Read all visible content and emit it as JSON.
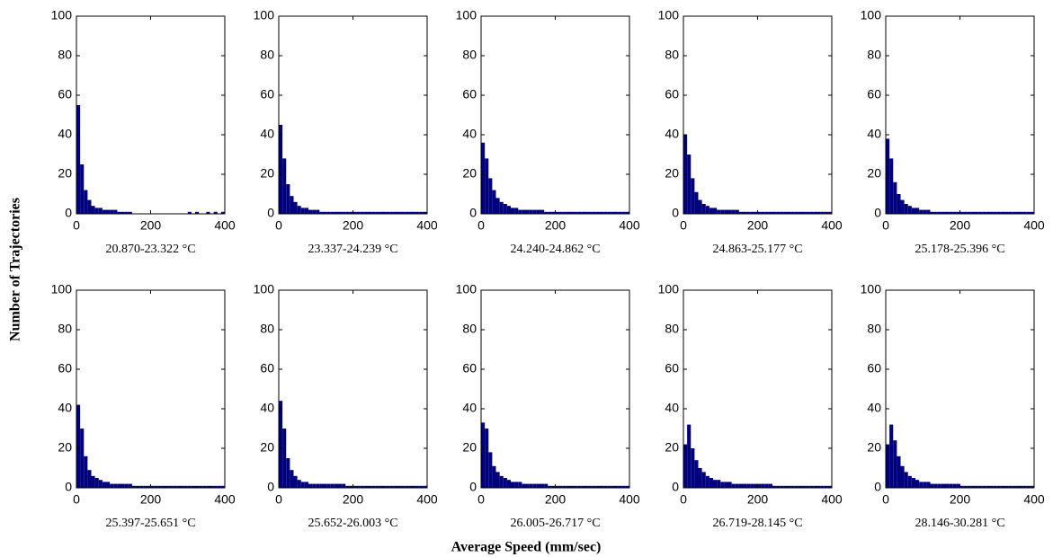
{
  "ylabel": "Number of Trajectories",
  "xlabel": "Average Speed (mm/sec)",
  "chart_data": [
    {
      "type": "histogram",
      "xlabel": "20.870-23.322 °C",
      "color": "#00007f",
      "xlim": [
        0,
        400
      ],
      "ylim": [
        0,
        100
      ],
      "xticks": [
        0,
        200,
        400
      ],
      "yticks": [
        0,
        20,
        40,
        60,
        80,
        100
      ],
      "bins": [
        0,
        10,
        20,
        30,
        40,
        50,
        60,
        70,
        80,
        90,
        100,
        110,
        120,
        130,
        140,
        150,
        160,
        170,
        180,
        190,
        200,
        210,
        220,
        230,
        240,
        250,
        260,
        270,
        280,
        290,
        300,
        310,
        320,
        330,
        340,
        350,
        360,
        370,
        380,
        390,
        400
      ],
      "counts": [
        55,
        25,
        12,
        7,
        4,
        3,
        3,
        2,
        2,
        2,
        2,
        1,
        1,
        1,
        1,
        0,
        0,
        0,
        0,
        0,
        0,
        0,
        0,
        0,
        0,
        0,
        0,
        0,
        0,
        0,
        1,
        0,
        1,
        0,
        0,
        1,
        0,
        1,
        0,
        1
      ]
    },
    {
      "type": "histogram",
      "xlabel": "23.337-24.239 °C",
      "color": "#00007f",
      "xlim": [
        0,
        400
      ],
      "ylim": [
        0,
        100
      ],
      "xticks": [
        0,
        200,
        400
      ],
      "yticks": [
        0,
        20,
        40,
        60,
        80,
        100
      ],
      "bins": [
        0,
        10,
        20,
        30,
        40,
        50,
        60,
        70,
        80,
        90,
        100,
        110,
        120,
        130,
        140,
        150,
        160,
        170,
        180,
        190,
        200,
        210,
        220,
        230,
        240,
        250,
        260,
        270,
        280,
        290,
        300,
        310,
        320,
        330,
        340,
        350,
        360,
        370,
        380,
        390,
        400
      ],
      "counts": [
        45,
        28,
        15,
        9,
        6,
        4,
        3,
        3,
        2,
        2,
        2,
        1,
        1,
        1,
        1,
        1,
        1,
        1,
        1,
        1,
        1,
        1,
        1,
        1,
        1,
        1,
        1,
        1,
        1,
        1,
        1,
        1,
        1,
        1,
        1,
        1,
        1,
        1,
        1,
        1
      ]
    },
    {
      "type": "histogram",
      "xlabel": "24.240-24.862 °C",
      "color": "#00007f",
      "xlim": [
        0,
        400
      ],
      "ylim": [
        0,
        100
      ],
      "xticks": [
        0,
        200,
        400
      ],
      "yticks": [
        0,
        20,
        40,
        60,
        80,
        100
      ],
      "bins": [
        0,
        10,
        20,
        30,
        40,
        50,
        60,
        70,
        80,
        90,
        100,
        110,
        120,
        130,
        140,
        150,
        160,
        170,
        180,
        190,
        200,
        210,
        220,
        230,
        240,
        250,
        260,
        270,
        280,
        290,
        300,
        310,
        320,
        330,
        340,
        350,
        360,
        370,
        380,
        390,
        400
      ],
      "counts": [
        36,
        28,
        18,
        12,
        8,
        6,
        5,
        4,
        3,
        3,
        2,
        2,
        2,
        2,
        2,
        2,
        2,
        1,
        1,
        1,
        1,
        1,
        1,
        1,
        1,
        1,
        1,
        1,
        1,
        1,
        1,
        1,
        1,
        1,
        1,
        1,
        1,
        1,
        1,
        1
      ]
    },
    {
      "type": "histogram",
      "xlabel": "24.863-25.177 °C",
      "color": "#00007f",
      "xlim": [
        0,
        400
      ],
      "ylim": [
        0,
        100
      ],
      "xticks": [
        0,
        200,
        400
      ],
      "yticks": [
        0,
        20,
        40,
        60,
        80,
        100
      ],
      "bins": [
        0,
        10,
        20,
        30,
        40,
        50,
        60,
        70,
        80,
        90,
        100,
        110,
        120,
        130,
        140,
        150,
        160,
        170,
        180,
        190,
        200,
        210,
        220,
        230,
        240,
        250,
        260,
        270,
        280,
        290,
        300,
        310,
        320,
        330,
        340,
        350,
        360,
        370,
        380,
        390,
        400
      ],
      "counts": [
        40,
        30,
        18,
        11,
        7,
        5,
        4,
        3,
        3,
        2,
        2,
        2,
        2,
        2,
        2,
        1,
        1,
        1,
        1,
        1,
        1,
        1,
        1,
        1,
        1,
        1,
        1,
        1,
        1,
        1,
        1,
        1,
        1,
        1,
        1,
        1,
        1,
        1,
        1,
        1
      ]
    },
    {
      "type": "histogram",
      "xlabel": "25.178-25.396 °C",
      "color": "#00007f",
      "xlim": [
        0,
        400
      ],
      "ylim": [
        0,
        100
      ],
      "xticks": [
        0,
        200,
        400
      ],
      "yticks": [
        0,
        20,
        40,
        60,
        80,
        100
      ],
      "bins": [
        0,
        10,
        20,
        30,
        40,
        50,
        60,
        70,
        80,
        90,
        100,
        110,
        120,
        130,
        140,
        150,
        160,
        170,
        180,
        190,
        200,
        210,
        220,
        230,
        240,
        250,
        260,
        270,
        280,
        290,
        300,
        310,
        320,
        330,
        340,
        350,
        360,
        370,
        380,
        390,
        400
      ],
      "counts": [
        38,
        28,
        16,
        10,
        7,
        5,
        4,
        3,
        3,
        2,
        2,
        2,
        1,
        1,
        1,
        1,
        1,
        1,
        1,
        1,
        1,
        1,
        1,
        1,
        1,
        1,
        1,
        1,
        1,
        1,
        1,
        1,
        1,
        1,
        1,
        1,
        1,
        1,
        1,
        1
      ]
    },
    {
      "type": "histogram",
      "xlabel": "25.397-25.651 °C",
      "color": "#00007f",
      "xlim": [
        0,
        400
      ],
      "ylim": [
        0,
        100
      ],
      "xticks": [
        0,
        200,
        400
      ],
      "yticks": [
        0,
        20,
        40,
        60,
        80,
        100
      ],
      "bins": [
        0,
        10,
        20,
        30,
        40,
        50,
        60,
        70,
        80,
        90,
        100,
        110,
        120,
        130,
        140,
        150,
        160,
        170,
        180,
        190,
        200,
        210,
        220,
        230,
        240,
        250,
        260,
        270,
        280,
        290,
        300,
        310,
        320,
        330,
        340,
        350,
        360,
        370,
        380,
        390,
        400
      ],
      "counts": [
        42,
        30,
        16,
        9,
        6,
        5,
        4,
        3,
        3,
        2,
        2,
        2,
        2,
        2,
        2,
        1,
        1,
        1,
        1,
        1,
        1,
        1,
        1,
        1,
        1,
        1,
        1,
        1,
        1,
        1,
        1,
        1,
        1,
        1,
        1,
        1,
        1,
        1,
        1,
        1
      ]
    },
    {
      "type": "histogram",
      "xlabel": "25.652-26.003 °C",
      "color": "#00007f",
      "xlim": [
        0,
        400
      ],
      "ylim": [
        0,
        100
      ],
      "xticks": [
        0,
        200,
        400
      ],
      "yticks": [
        0,
        20,
        40,
        60,
        80,
        100
      ],
      "bins": [
        0,
        10,
        20,
        30,
        40,
        50,
        60,
        70,
        80,
        90,
        100,
        110,
        120,
        130,
        140,
        150,
        160,
        170,
        180,
        190,
        200,
        210,
        220,
        230,
        240,
        250,
        260,
        270,
        280,
        290,
        300,
        310,
        320,
        330,
        340,
        350,
        360,
        370,
        380,
        390,
        400
      ],
      "counts": [
        44,
        30,
        15,
        9,
        6,
        4,
        3,
        3,
        2,
        2,
        2,
        2,
        2,
        2,
        2,
        2,
        2,
        2,
        1,
        1,
        1,
        1,
        1,
        1,
        1,
        1,
        1,
        1,
        1,
        1,
        1,
        1,
        1,
        1,
        1,
        1,
        1,
        1,
        1,
        1
      ]
    },
    {
      "type": "histogram",
      "xlabel": "26.005-26.717 °C",
      "color": "#00007f",
      "xlim": [
        0,
        400
      ],
      "ylim": [
        0,
        100
      ],
      "xticks": [
        0,
        200,
        400
      ],
      "yticks": [
        0,
        20,
        40,
        60,
        80,
        100
      ],
      "bins": [
        0,
        10,
        20,
        30,
        40,
        50,
        60,
        70,
        80,
        90,
        100,
        110,
        120,
        130,
        140,
        150,
        160,
        170,
        180,
        190,
        200,
        210,
        220,
        230,
        240,
        250,
        260,
        270,
        280,
        290,
        300,
        310,
        320,
        330,
        340,
        350,
        360,
        370,
        380,
        390,
        400
      ],
      "counts": [
        33,
        30,
        18,
        11,
        8,
        6,
        5,
        4,
        3,
        3,
        3,
        2,
        2,
        2,
        2,
        2,
        2,
        2,
        1,
        1,
        1,
        1,
        1,
        1,
        1,
        1,
        1,
        1,
        1,
        1,
        1,
        1,
        1,
        1,
        1,
        1,
        1,
        1,
        1,
        1
      ]
    },
    {
      "type": "histogram",
      "xlabel": "26.719-28.145 °C",
      "color": "#00007f",
      "xlim": [
        0,
        400
      ],
      "ylim": [
        0,
        100
      ],
      "xticks": [
        0,
        200,
        400
      ],
      "yticks": [
        0,
        20,
        40,
        60,
        80,
        100
      ],
      "bins": [
        0,
        10,
        20,
        30,
        40,
        50,
        60,
        70,
        80,
        90,
        100,
        110,
        120,
        130,
        140,
        150,
        160,
        170,
        180,
        190,
        200,
        210,
        220,
        230,
        240,
        250,
        260,
        270,
        280,
        290,
        300,
        310,
        320,
        330,
        340,
        350,
        360,
        370,
        380,
        390,
        400
      ],
      "counts": [
        22,
        32,
        20,
        14,
        10,
        8,
        6,
        5,
        4,
        4,
        3,
        3,
        3,
        2,
        2,
        2,
        2,
        2,
        2,
        2,
        2,
        2,
        2,
        2,
        1,
        1,
        1,
        1,
        1,
        1,
        1,
        1,
        1,
        1,
        1,
        1,
        1,
        1,
        1,
        1
      ]
    },
    {
      "type": "histogram",
      "xlabel": "28.146-30.281 °C",
      "color": "#00007f",
      "xlim": [
        0,
        400
      ],
      "ylim": [
        0,
        100
      ],
      "xticks": [
        0,
        200,
        400
      ],
      "yticks": [
        0,
        20,
        40,
        60,
        80,
        100
      ],
      "bins": [
        0,
        10,
        20,
        30,
        40,
        50,
        60,
        70,
        80,
        90,
        100,
        110,
        120,
        130,
        140,
        150,
        160,
        170,
        180,
        190,
        200,
        210,
        220,
        230,
        240,
        250,
        260,
        270,
        280,
        290,
        300,
        310,
        320,
        330,
        340,
        350,
        360,
        370,
        380,
        390,
        400
      ],
      "counts": [
        22,
        32,
        24,
        16,
        11,
        8,
        6,
        5,
        4,
        3,
        3,
        3,
        2,
        2,
        2,
        2,
        2,
        2,
        2,
        2,
        1,
        1,
        1,
        1,
        1,
        1,
        1,
        1,
        1,
        1,
        1,
        1,
        1,
        1,
        1,
        1,
        1,
        1,
        1,
        1
      ]
    }
  ]
}
